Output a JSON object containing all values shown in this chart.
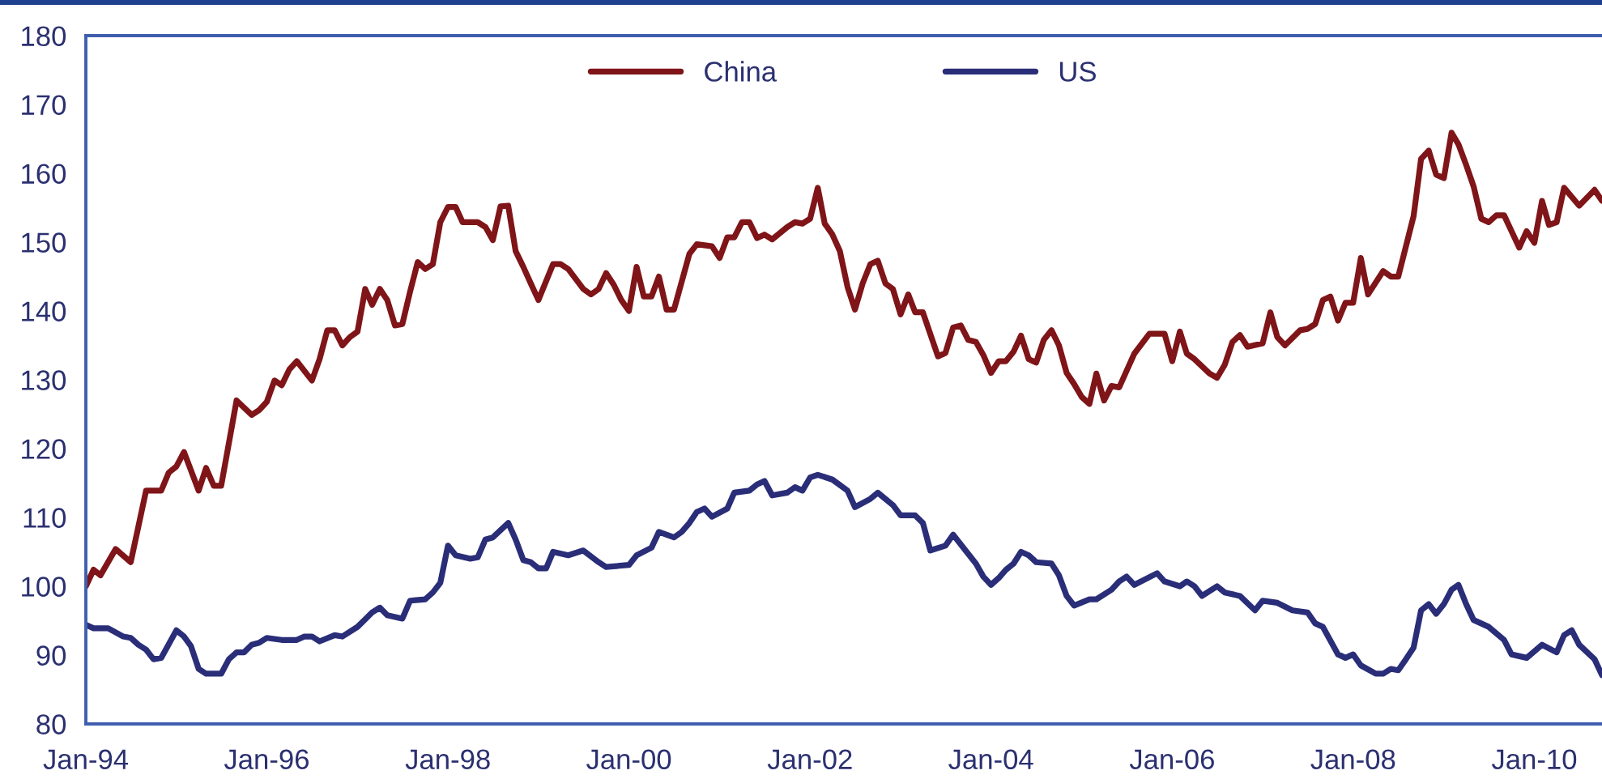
{
  "chart_data": {
    "type": "line",
    "xlim": [
      "1994-01",
      "2010-10"
    ],
    "xticks": [
      {
        "value": "1994-01",
        "label": "Jan-94"
      },
      {
        "value": "1996-01",
        "label": "Jan-96"
      },
      {
        "value": "1998-01",
        "label": "Jan-98"
      },
      {
        "value": "2000-01",
        "label": "Jan-00"
      },
      {
        "value": "2002-01",
        "label": "Jan-02"
      },
      {
        "value": "2004-01",
        "label": "Jan-04"
      },
      {
        "value": "2006-01",
        "label": "Jan-06"
      },
      {
        "value": "2008-01",
        "label": "Jan-08"
      },
      {
        "value": "2010-01",
        "label": "Jan-10"
      }
    ],
    "ylim": [
      80,
      180
    ],
    "yticks": [
      80,
      90,
      100,
      110,
      120,
      130,
      140,
      150,
      160,
      170,
      180
    ],
    "grid": false,
    "legend": "top",
    "marker": "none",
    "line_style": "solid",
    "series": [
      {
        "name": "China",
        "color": "#7f1518",
        "x": [
          "1994-01",
          "1994-02",
          "1994-03",
          "1994-05",
          "1994-07",
          "1994-09",
          "1994-11",
          "1994-12",
          "1995-01",
          "1995-02",
          "1995-04",
          "1995-05",
          "1995-06",
          "1995-07",
          "1995-09",
          "1995-11",
          "1995-12",
          "1996-01",
          "1996-02",
          "1996-03",
          "1996-04",
          "1996-05",
          "1996-07",
          "1996-08",
          "1996-09",
          "1996-10",
          "1996-11",
          "1996-12",
          "1997-01",
          "1997-02",
          "1997-03",
          "1997-04",
          "1997-05",
          "1997-06",
          "1997-07",
          "1997-08",
          "1997-09",
          "1997-10",
          "1997-11",
          "1997-12",
          "1998-01",
          "1998-02",
          "1998-03",
          "1998-05",
          "1998-06",
          "1998-07",
          "1998-08",
          "1998-09",
          "1998-10",
          "1998-11",
          "1998-12",
          "1999-01",
          "1999-03",
          "1999-04",
          "1999-05",
          "1999-07",
          "1999-08",
          "1999-09",
          "1999-10",
          "1999-11",
          "1999-12",
          "2000-01",
          "2000-02",
          "2000-03",
          "2000-04",
          "2000-05",
          "2000-06",
          "2000-07",
          "2000-09",
          "2000-10",
          "2000-12",
          "2001-01",
          "2001-02",
          "2001-03",
          "2001-04",
          "2001-05",
          "2001-06",
          "2001-07",
          "2001-08",
          "2001-10",
          "2001-11",
          "2001-12",
          "2002-01",
          "2002-02",
          "2002-03",
          "2002-04",
          "2002-05",
          "2002-06",
          "2002-07",
          "2002-08",
          "2002-09",
          "2002-10",
          "2002-11",
          "2002-12",
          "2003-01",
          "2003-02",
          "2003-03",
          "2003-04",
          "2003-06",
          "2003-07",
          "2003-08",
          "2003-09",
          "2003-10",
          "2003-11",
          "2003-12",
          "2004-01",
          "2004-02",
          "2004-03",
          "2004-04",
          "2004-05",
          "2004-06",
          "2004-07",
          "2004-08",
          "2004-09",
          "2004-10",
          "2004-11",
          "2004-12",
          "2005-01",
          "2005-02",
          "2005-03",
          "2005-04",
          "2005-05",
          "2005-06",
          "2005-08",
          "2005-10",
          "2005-12",
          "2006-01",
          "2006-02",
          "2006-03",
          "2006-04",
          "2006-06",
          "2006-07",
          "2006-08",
          "2006-09",
          "2006-10",
          "2006-11",
          "2007-01",
          "2007-02",
          "2007-03",
          "2007-04",
          "2007-06",
          "2007-07",
          "2007-08",
          "2007-09",
          "2007-10",
          "2007-11",
          "2007-12",
          "2008-01",
          "2008-02",
          "2008-03",
          "2008-05",
          "2008-06",
          "2008-07",
          "2008-09",
          "2008-10",
          "2008-11",
          "2008-12",
          "2009-01",
          "2009-02",
          "2009-03",
          "2009-04",
          "2009-05",
          "2009-06",
          "2009-07",
          "2009-08",
          "2009-09",
          "2009-10",
          "2009-11",
          "2009-12",
          "2010-01",
          "2010-02",
          "2010-03",
          "2010-04",
          "2010-05",
          "2010-07",
          "2010-09",
          "2010-10"
        ],
        "values": [
          100.0,
          102.4,
          101.6,
          105.4,
          103.5,
          113.9,
          113.9,
          116.5,
          117.4,
          119.5,
          113.9,
          117.2,
          114.6,
          114.6,
          127.0,
          124.9,
          125.6,
          126.8,
          129.9,
          129.2,
          131.5,
          132.7,
          129.9,
          133.0,
          137.2,
          137.2,
          135.0,
          136.2,
          137.0,
          143.2,
          140.9,
          143.2,
          141.6,
          137.9,
          138.1,
          142.8,
          147.1,
          146.1,
          146.8,
          152.9,
          155.1,
          155.1,
          152.9,
          152.9,
          152.2,
          150.3,
          155.2,
          155.3,
          148.7,
          146.4,
          144.0,
          141.6,
          146.8,
          146.8,
          146.1,
          143.2,
          142.4,
          143.2,
          145.5,
          143.8,
          141.6,
          140.0,
          146.4,
          142.1,
          142.1,
          145.0,
          140.2,
          140.2,
          148.3,
          149.7,
          149.4,
          147.7,
          150.7,
          150.7,
          152.9,
          152.9,
          150.6,
          151.1,
          150.4,
          152.2,
          152.9,
          152.7,
          153.4,
          157.9,
          152.7,
          151.1,
          148.7,
          143.5,
          140.2,
          144.0,
          146.8,
          147.3,
          144.0,
          143.2,
          139.5,
          142.4,
          139.8,
          139.8,
          133.4,
          133.9,
          137.6,
          137.9,
          135.8,
          135.5,
          133.6,
          131.0,
          132.7,
          132.7,
          134.1,
          136.4,
          133.0,
          132.5,
          135.8,
          137.2,
          135.0,
          131.0,
          129.4,
          127.5,
          126.5,
          130.9,
          127.0,
          129.1,
          128.9,
          133.8,
          136.7,
          136.7,
          132.7,
          137.0,
          133.8,
          133.0,
          130.9,
          130.3,
          132.2,
          135.5,
          136.5,
          134.8,
          135.3,
          139.8,
          136.2,
          135.0,
          137.2,
          137.4,
          138.1,
          141.6,
          142.1,
          138.6,
          141.2,
          141.2,
          147.7,
          142.4,
          145.8,
          145.0,
          145.0,
          153.8,
          162.1,
          163.3,
          159.8,
          159.3,
          165.9,
          164.2,
          161.2,
          158.1,
          153.4,
          152.9,
          153.9,
          153.9,
          151.6,
          149.2,
          151.6,
          149.9,
          156.0,
          152.5,
          152.9,
          157.9,
          155.3,
          157.6,
          156.0
        ]
      },
      {
        "name": "US",
        "color": "#2a2e78",
        "x": [
          "1994-01",
          "1994-02",
          "1994-04",
          "1994-06",
          "1994-07",
          "1994-08",
          "1994-09",
          "1994-10",
          "1994-11",
          "1995-01",
          "1995-02",
          "1995-03",
          "1995-04",
          "1995-05",
          "1995-07",
          "1995-08",
          "1995-09",
          "1995-10",
          "1995-11",
          "1995-12",
          "1996-01",
          "1996-03",
          "1996-05",
          "1996-06",
          "1996-07",
          "1996-08",
          "1996-10",
          "1996-11",
          "1997-01",
          "1997-03",
          "1997-04",
          "1997-05",
          "1997-07",
          "1997-08",
          "1997-10",
          "1997-11",
          "1997-12",
          "1998-01",
          "1998-02",
          "1998-04",
          "1998-05",
          "1998-06",
          "1998-07",
          "1998-09",
          "1998-10",
          "1998-11",
          "1998-12",
          "1999-01",
          "1999-02",
          "1999-03",
          "1999-05",
          "1999-07",
          "1999-09",
          "1999-10",
          "2000-01",
          "2000-02",
          "2000-04",
          "2000-05",
          "2000-07",
          "2000-08",
          "2000-09",
          "2000-10",
          "2000-11",
          "2000-12",
          "2001-02",
          "2001-03",
          "2001-05",
          "2001-06",
          "2001-07",
          "2001-08",
          "2001-10",
          "2001-11",
          "2001-12",
          "2002-01",
          "2002-02",
          "2002-04",
          "2002-06",
          "2002-07",
          "2002-09",
          "2002-10",
          "2002-12",
          "2003-01",
          "2003-03",
          "2003-04",
          "2003-05",
          "2003-07",
          "2003-08",
          "2003-10",
          "2003-11",
          "2003-12",
          "2004-01",
          "2004-02",
          "2004-03",
          "2004-04",
          "2004-05",
          "2004-06",
          "2004-07",
          "2004-09",
          "2004-10",
          "2004-11",
          "2004-12",
          "2005-02",
          "2005-03",
          "2005-05",
          "2005-06",
          "2005-07",
          "2005-08",
          "2005-11",
          "2005-12",
          "2006-02",
          "2006-03",
          "2006-04",
          "2006-05",
          "2006-07",
          "2006-08",
          "2006-10",
          "2006-12",
          "2007-01",
          "2007-03",
          "2007-05",
          "2007-07",
          "2007-08",
          "2007-09",
          "2007-11",
          "2007-12",
          "2008-01",
          "2008-02",
          "2008-04",
          "2008-05",
          "2008-06",
          "2008-07",
          "2008-08",
          "2008-09",
          "2008-10",
          "2008-11",
          "2008-12",
          "2009-01",
          "2009-02",
          "2009-03",
          "2009-04",
          "2009-05",
          "2009-07",
          "2009-09",
          "2009-10",
          "2009-12",
          "2010-02",
          "2010-04",
          "2010-05",
          "2010-06",
          "2010-07",
          "2010-09",
          "2010-10"
        ],
        "values": [
          94.4,
          93.9,
          93.9,
          92.7,
          92.5,
          91.5,
          90.8,
          89.4,
          89.6,
          93.6,
          92.7,
          91.3,
          88.0,
          87.3,
          87.3,
          89.4,
          90.4,
          90.4,
          91.5,
          91.8,
          92.5,
          92.2,
          92.2,
          92.7,
          92.7,
          92.0,
          92.9,
          92.7,
          94.1,
          96.2,
          96.9,
          95.8,
          95.3,
          97.9,
          98.1,
          99.1,
          100.5,
          105.9,
          104.5,
          104.0,
          104.2,
          106.8,
          107.1,
          109.2,
          106.8,
          103.8,
          103.5,
          102.6,
          102.6,
          105.0,
          104.5,
          105.2,
          103.5,
          102.8,
          103.1,
          104.5,
          105.6,
          107.9,
          107.1,
          107.9,
          109.2,
          110.8,
          111.3,
          110.1,
          111.3,
          113.6,
          113.9,
          114.8,
          115.3,
          113.2,
          113.6,
          114.4,
          113.9,
          115.8,
          116.2,
          115.5,
          113.9,
          111.5,
          112.7,
          113.6,
          111.8,
          110.3,
          110.3,
          109.2,
          105.2,
          105.9,
          107.5,
          104.7,
          103.3,
          101.4,
          100.2,
          101.2,
          102.4,
          103.3,
          105.0,
          104.5,
          103.5,
          103.3,
          101.6,
          98.6,
          97.2,
          98.1,
          98.1,
          99.5,
          100.7,
          101.4,
          100.2,
          101.9,
          100.7,
          100.0,
          100.7,
          100.0,
          98.6,
          100.0,
          99.1,
          98.6,
          96.5,
          97.9,
          97.6,
          96.5,
          96.2,
          94.6,
          94.1,
          90.1,
          89.6,
          90.1,
          88.5,
          87.3,
          87.3,
          88.0,
          87.8,
          89.4,
          91.1,
          96.5,
          97.4,
          96.0,
          97.4,
          99.5,
          100.2,
          97.4,
          95.1,
          94.1,
          92.2,
          90.1,
          89.6,
          91.5,
          90.4,
          92.9,
          93.6,
          91.5,
          89.4,
          87.1
        ]
      }
    ]
  }
}
